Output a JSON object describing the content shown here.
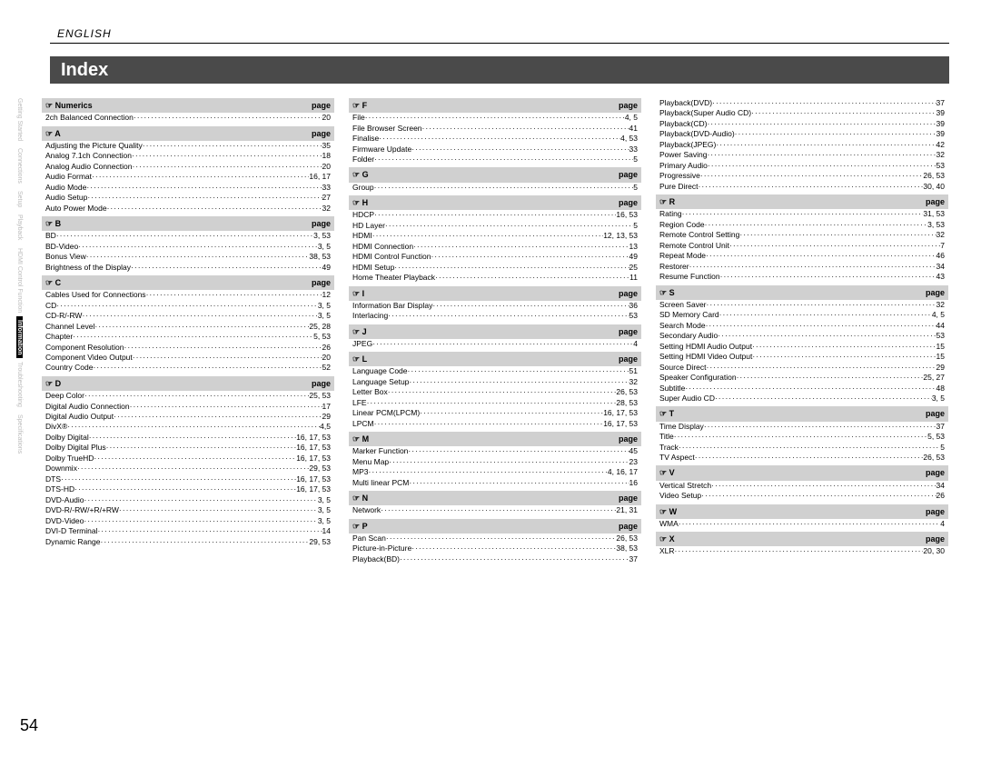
{
  "language": "ENGLISH",
  "title": "Index",
  "page_number": "54",
  "page_label": "page",
  "hand_glyph": "☞",
  "sidebar": [
    {
      "label": "Getting Started",
      "active": false
    },
    {
      "label": "Connections",
      "active": false
    },
    {
      "label": "Setup",
      "active": false
    },
    {
      "label": "Playback",
      "active": false
    },
    {
      "label": "HDMI Control Function",
      "active": false
    },
    {
      "label": "Information",
      "active": true
    },
    {
      "label": "Troubleshooting",
      "active": false
    },
    {
      "label": "Specifications",
      "active": false
    }
  ],
  "columns": [
    [
      {
        "type": "header",
        "label": "Numerics"
      },
      {
        "type": "entry",
        "label": "2ch Balanced Connection",
        "page": "20"
      },
      {
        "type": "header",
        "label": "A"
      },
      {
        "type": "entry",
        "label": "Adjusting the Picture Quality",
        "page": "35"
      },
      {
        "type": "entry",
        "label": "Analog 7.1ch Connection",
        "page": "18"
      },
      {
        "type": "entry",
        "label": "Analog Audio Connection",
        "page": "20"
      },
      {
        "type": "entry",
        "label": "Audio Format",
        "page": "16, 17"
      },
      {
        "type": "entry",
        "label": "Audio Mode",
        "page": "33"
      },
      {
        "type": "entry",
        "label": "Audio Setup",
        "page": "27"
      },
      {
        "type": "entry",
        "label": "Auto Power Mode",
        "page": "32"
      },
      {
        "type": "header",
        "label": "B"
      },
      {
        "type": "entry",
        "label": "BD",
        "page": "3, 53"
      },
      {
        "type": "entry",
        "label": "BD-Video",
        "page": "3, 5"
      },
      {
        "type": "entry",
        "label": "Bonus View",
        "page": "38, 53"
      },
      {
        "type": "entry",
        "label": "Brightness of the Display",
        "page": "49"
      },
      {
        "type": "header",
        "label": "C"
      },
      {
        "type": "entry",
        "label": "Cables Used for Connections",
        "page": "12"
      },
      {
        "type": "entry",
        "label": "CD",
        "page": "3, 5"
      },
      {
        "type": "entry",
        "label": "CD-R/-RW",
        "page": "3, 5"
      },
      {
        "type": "entry",
        "label": "Channel Level",
        "page": "25, 28"
      },
      {
        "type": "entry",
        "label": "Chapter",
        "page": "5, 53"
      },
      {
        "type": "entry",
        "label": "Component Resolution",
        "page": "26"
      },
      {
        "type": "entry",
        "label": "Component Video Output",
        "page": "20"
      },
      {
        "type": "entry",
        "label": "Country Code",
        "page": "52"
      },
      {
        "type": "header",
        "label": "D"
      },
      {
        "type": "entry",
        "label": "Deep Color",
        "page": "25, 53"
      },
      {
        "type": "entry",
        "label": "Digital Audio Connection",
        "page": "17"
      },
      {
        "type": "entry",
        "label": "Digital Audio Output",
        "page": "29"
      },
      {
        "type": "entry",
        "label": "DivX®",
        "page": "4,5"
      },
      {
        "type": "entry",
        "label": "Dolby Digital",
        "page": "16, 17, 53"
      },
      {
        "type": "entry",
        "label": "Dolby Digital Plus",
        "page": "16, 17, 53"
      },
      {
        "type": "entry",
        "label": "Dolby TrueHD",
        "page": "16, 17, 53"
      },
      {
        "type": "entry",
        "label": "Downmix",
        "page": "29, 53"
      },
      {
        "type": "entry",
        "label": "DTS",
        "page": "16, 17, 53"
      },
      {
        "type": "entry",
        "label": "DTS-HD",
        "page": "16, 17, 53"
      },
      {
        "type": "entry",
        "label": "DVD-Audio",
        "page": "3, 5"
      },
      {
        "type": "entry",
        "label": "DVD-R/-RW/+R/+RW",
        "page": "3, 5"
      },
      {
        "type": "entry",
        "label": "DVD-Video",
        "page": "3, 5"
      },
      {
        "type": "entry",
        "label": "DVI-D Terminal",
        "page": "14"
      },
      {
        "type": "entry",
        "label": "Dynamic Range",
        "page": "29, 53"
      }
    ],
    [
      {
        "type": "header",
        "label": "F"
      },
      {
        "type": "entry",
        "label": "File",
        "page": "4, 5"
      },
      {
        "type": "entry",
        "label": "File Browser Screen",
        "page": "41"
      },
      {
        "type": "entry",
        "label": "Finalise",
        "page": "4, 53"
      },
      {
        "type": "entry",
        "label": "Firmware Update",
        "page": "33"
      },
      {
        "type": "entry",
        "label": "Folder",
        "page": "5"
      },
      {
        "type": "header",
        "label": "G"
      },
      {
        "type": "entry",
        "label": "Group",
        "page": "5"
      },
      {
        "type": "header",
        "label": "H"
      },
      {
        "type": "entry",
        "label": "HDCP",
        "page": "16, 53"
      },
      {
        "type": "entry",
        "label": "HD Layer",
        "page": "5"
      },
      {
        "type": "entry",
        "label": "HDMI",
        "page": "12, 13, 53"
      },
      {
        "type": "entry",
        "label": "HDMI Connection",
        "page": "13"
      },
      {
        "type": "entry",
        "label": "HDMI Control Function",
        "page": "49"
      },
      {
        "type": "entry",
        "label": "HDMI Setup",
        "page": "25"
      },
      {
        "type": "entry",
        "label": "Home Theater Playback",
        "page": "11"
      },
      {
        "type": "header",
        "label": "I"
      },
      {
        "type": "entry",
        "label": "Information Bar Display",
        "page": "36"
      },
      {
        "type": "entry",
        "label": "Interlacing",
        "page": "53"
      },
      {
        "type": "header",
        "label": "J"
      },
      {
        "type": "entry",
        "label": "JPEG",
        "page": "4"
      },
      {
        "type": "header",
        "label": "L"
      },
      {
        "type": "entry",
        "label": "Language Code",
        "page": "51"
      },
      {
        "type": "entry",
        "label": "Language Setup",
        "page": "32"
      },
      {
        "type": "entry",
        "label": "Letter Box",
        "page": "26, 53"
      },
      {
        "type": "entry",
        "label": "LFE",
        "page": "28, 53"
      },
      {
        "type": "entry",
        "label": "Linear PCM(LPCM)",
        "page": "16, 17, 53"
      },
      {
        "type": "entry",
        "label": "LPCM",
        "page": "16, 17, 53"
      },
      {
        "type": "header",
        "label": "M"
      },
      {
        "type": "entry",
        "label": "Marker Function",
        "page": "45"
      },
      {
        "type": "entry",
        "label": "Menu Map",
        "page": "23"
      },
      {
        "type": "entry",
        "label": "MP3",
        "page": "4, 16, 17"
      },
      {
        "type": "entry",
        "label": "Multi linear PCM",
        "page": "16"
      },
      {
        "type": "header",
        "label": "N"
      },
      {
        "type": "entry",
        "label": "Network",
        "page": "21, 31"
      },
      {
        "type": "header",
        "label": "P"
      },
      {
        "type": "entry",
        "label": "Pan Scan",
        "page": "26, 53"
      },
      {
        "type": "entry",
        "label": "Picture-in-Picture",
        "page": "38, 53"
      },
      {
        "type": "entry",
        "label": "Playback(BD)",
        "page": "37"
      }
    ],
    [
      {
        "type": "entry",
        "label": "Playback(DVD)",
        "page": "37"
      },
      {
        "type": "entry",
        "label": "Playback(Super Audio CD)",
        "page": "39"
      },
      {
        "type": "entry",
        "label": "Playback(CD)",
        "page": "39"
      },
      {
        "type": "entry",
        "label": "Playback(DVD-Audio)",
        "page": "39"
      },
      {
        "type": "entry",
        "label": "Playback(JPEG)",
        "page": "42"
      },
      {
        "type": "entry",
        "label": "Power Saving",
        "page": "32"
      },
      {
        "type": "entry",
        "label": "Primary Audio",
        "page": "53"
      },
      {
        "type": "entry",
        "label": "Progressive",
        "page": "26, 53"
      },
      {
        "type": "entry",
        "label": "Pure Direct",
        "page": "30, 40"
      },
      {
        "type": "header",
        "label": "R"
      },
      {
        "type": "entry",
        "label": "Rating",
        "page": "31, 53"
      },
      {
        "type": "entry",
        "label": "Region Code",
        "page": "3, 53"
      },
      {
        "type": "entry",
        "label": "Remote Control Setting",
        "page": "32"
      },
      {
        "type": "entry",
        "label": "Remote Control Unit",
        "page": "7"
      },
      {
        "type": "entry",
        "label": "Repeat Mode",
        "page": "46"
      },
      {
        "type": "entry",
        "label": "Restorer",
        "page": "34"
      },
      {
        "type": "entry",
        "label": "Resume Function",
        "page": "43"
      },
      {
        "type": "header",
        "label": "S"
      },
      {
        "type": "entry",
        "label": "Screen Saver",
        "page": "32"
      },
      {
        "type": "entry",
        "label": "SD Memory Card",
        "page": "4, 5"
      },
      {
        "type": "entry",
        "label": "Search Mode",
        "page": "44"
      },
      {
        "type": "entry",
        "label": "Secondary Audio",
        "page": "53"
      },
      {
        "type": "entry",
        "label": "Setting HDMI Audio Output",
        "page": "15"
      },
      {
        "type": "entry",
        "label": "Setting HDMI Video Output",
        "page": "15"
      },
      {
        "type": "entry",
        "label": "Source Direct",
        "page": "29"
      },
      {
        "type": "entry",
        "label": "Speaker Configuration",
        "page": "25, 27"
      },
      {
        "type": "entry",
        "label": "Subtitle",
        "page": "48"
      },
      {
        "type": "entry",
        "label": "Super Audio CD",
        "page": "3, 5"
      },
      {
        "type": "header",
        "label": "T"
      },
      {
        "type": "entry",
        "label": "Time Display",
        "page": "37"
      },
      {
        "type": "entry",
        "label": "Title",
        "page": "5, 53"
      },
      {
        "type": "entry",
        "label": "Track",
        "page": "5"
      },
      {
        "type": "entry",
        "label": "TV Aspect",
        "page": "26, 53"
      },
      {
        "type": "header",
        "label": "V"
      },
      {
        "type": "entry",
        "label": "Vertical Stretch",
        "page": "34"
      },
      {
        "type": "entry",
        "label": "Video Setup",
        "page": "26"
      },
      {
        "type": "header",
        "label": "W"
      },
      {
        "type": "entry",
        "label": "WMA",
        "page": "4"
      },
      {
        "type": "header",
        "label": "X"
      },
      {
        "type": "entry",
        "label": "XLR",
        "page": "20, 30"
      }
    ]
  ]
}
